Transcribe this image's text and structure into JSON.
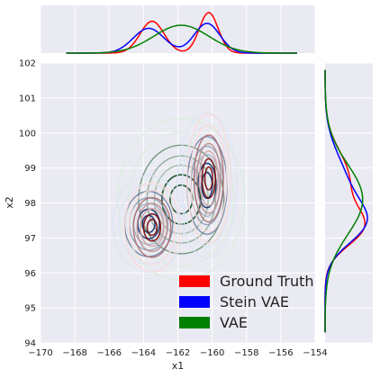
{
  "chart_data": {
    "type": "contour",
    "xlabel": "x1",
    "ylabel": "x2",
    "xlim": [
      -170,
      -154
    ],
    "ylim": [
      94,
      102
    ],
    "xticks": [
      "−170",
      "−168",
      "−166",
      "−164",
      "−162",
      "−160",
      "−158",
      "−156",
      "−154"
    ],
    "yticks": [
      "94",
      "95",
      "96",
      "97",
      "98",
      "99",
      "100",
      "101",
      "102"
    ],
    "grid": true,
    "legend_position": "lower-right",
    "series": [
      {
        "name": "Ground Truth",
        "color": "#ff0000",
        "modes": [
          {
            "x": -163.5,
            "y": 97.3,
            "sx": 0.7,
            "sy": 0.55,
            "w": 0.5
          },
          {
            "x": -160.2,
            "y": 98.7,
            "sx": 0.55,
            "sy": 0.8,
            "w": 0.5
          }
        ]
      },
      {
        "name": "Stein VAE",
        "color": "#0000ff",
        "modes": [
          {
            "x": -163.7,
            "y": 97.4,
            "sx": 0.9,
            "sy": 0.6,
            "w": 0.5
          },
          {
            "x": -160.3,
            "y": 98.5,
            "sx": 0.75,
            "sy": 0.9,
            "w": 0.5
          }
        ]
      },
      {
        "name": "VAE",
        "color": "#008000",
        "modes": [
          {
            "x": -161.8,
            "y": 98.1,
            "sx": 1.6,
            "sy": 1.0,
            "w": 1.0
          }
        ]
      }
    ]
  }
}
